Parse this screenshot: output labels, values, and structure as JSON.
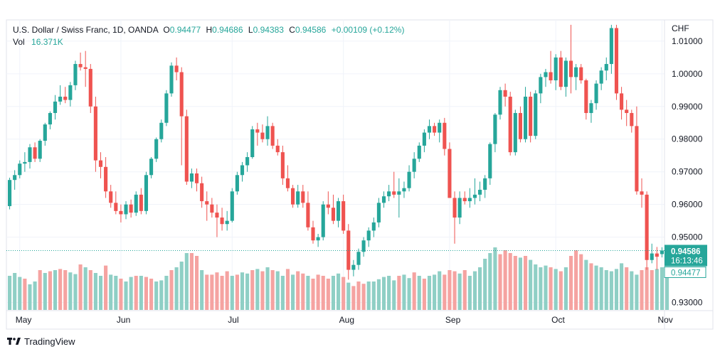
{
  "legend": {
    "symbol": "U.S. Dollar / Swiss Franc, 1D, OANDA",
    "o_label": "O",
    "o_value": "0.94477",
    "h_label": "H",
    "h_value": "0.94686",
    "l_label": "L",
    "l_value": "0.94383",
    "c_label": "C",
    "c_value": "0.94586",
    "change": "+0.00109 (+0.12%)",
    "vol_label": "Vol",
    "vol_value": "16.371K"
  },
  "currency": "CHF",
  "last_price_label": "0.94586",
  "countdown": "16:13:46",
  "open_price_label": "0.94477",
  "brand": "TradingView",
  "colors": {
    "up": "#26a69a",
    "down": "#ef5350",
    "vol_up": "#8fcfc5",
    "vol_down": "#f5a3a1",
    "grid": "#f0f3fa"
  },
  "chart_data": {
    "type": "candlestick",
    "symbol": "USDCHF",
    "interval": "1D",
    "x_tick_labels": [
      "May",
      "Jun",
      "Jul",
      "Aug",
      "Sep",
      "Oct",
      "Nov"
    ],
    "y_tick_labels": [
      "1.01000",
      "1.00000",
      "0.99000",
      "0.98000",
      "0.97000",
      "0.96000",
      "0.95000",
      "0.93000"
    ],
    "ylim": [
      0.9275,
      1.0165
    ],
    "grid": true,
    "ohlc": [
      [
        0.9595,
        0.9682,
        0.9585,
        0.9675
      ],
      [
        0.9675,
        0.9705,
        0.9645,
        0.969
      ],
      [
        0.969,
        0.9735,
        0.968,
        0.9725
      ],
      [
        0.9725,
        0.976,
        0.97,
        0.973
      ],
      [
        0.973,
        0.9785,
        0.971,
        0.9775
      ],
      [
        0.9775,
        0.979,
        0.973,
        0.974
      ],
      [
        0.974,
        0.98,
        0.973,
        0.9795
      ],
      [
        0.9795,
        0.985,
        0.978,
        0.9845
      ],
      [
        0.9845,
        0.9885,
        0.983,
        0.988
      ],
      [
        0.988,
        0.9935,
        0.986,
        0.9915
      ],
      [
        0.9915,
        0.9965,
        0.9905,
        0.993
      ],
      [
        0.993,
        0.996,
        0.991,
        0.992
      ],
      [
        0.992,
        0.9975,
        0.99,
        0.9965
      ],
      [
        0.9965,
        1.004,
        0.995,
        1.003
      ],
      [
        1.003,
        1.0065,
        1.001,
        1.002
      ],
      [
        1.002,
        1.007,
        0.996,
        1.0015
      ],
      [
        1.0015,
        1.003,
        0.988,
        0.99
      ],
      [
        0.99,
        0.993,
        0.97,
        0.9735
      ],
      [
        0.9735,
        0.976,
        0.968,
        0.9715
      ],
      [
        0.9715,
        0.9745,
        0.962,
        0.964
      ],
      [
        0.964,
        0.966,
        0.959,
        0.9605
      ],
      [
        0.9605,
        0.964,
        0.957,
        0.958
      ],
      [
        0.958,
        0.96,
        0.9545,
        0.957
      ],
      [
        0.957,
        0.961,
        0.9555,
        0.96
      ],
      [
        0.96,
        0.9615,
        0.956,
        0.9575
      ],
      [
        0.9575,
        0.964,
        0.9565,
        0.963
      ],
      [
        0.963,
        0.965,
        0.957,
        0.958
      ],
      [
        0.958,
        0.97,
        0.957,
        0.969
      ],
      [
        0.969,
        0.9745,
        0.968,
        0.974
      ],
      [
        0.974,
        0.9805,
        0.973,
        0.98
      ],
      [
        0.98,
        0.986,
        0.979,
        0.985
      ],
      [
        0.985,
        0.995,
        0.984,
        0.994
      ],
      [
        0.994,
        1.0035,
        0.993,
        1.0025
      ],
      [
        1.0025,
        1.005,
        0.998,
        1.0005
      ],
      [
        1.0005,
        1.002,
        0.972,
        0.987
      ],
      [
        0.987,
        0.989,
        0.966,
        0.967
      ],
      [
        0.967,
        0.971,
        0.965,
        0.9695
      ],
      [
        0.9695,
        0.971,
        0.964,
        0.9665
      ],
      [
        0.9665,
        0.9685,
        0.959,
        0.961
      ],
      [
        0.961,
        0.964,
        0.955,
        0.96
      ],
      [
        0.96,
        0.962,
        0.956,
        0.9575
      ],
      [
        0.9575,
        0.96,
        0.95,
        0.956
      ],
      [
        0.956,
        0.959,
        0.952,
        0.954
      ],
      [
        0.954,
        0.958,
        0.952,
        0.955
      ],
      [
        0.955,
        0.965,
        0.9545,
        0.964
      ],
      [
        0.964,
        0.97,
        0.963,
        0.969
      ],
      [
        0.969,
        0.973,
        0.967,
        0.972
      ],
      [
        0.972,
        0.976,
        0.97,
        0.9745
      ],
      [
        0.9745,
        0.984,
        0.974,
        0.983
      ],
      [
        0.983,
        0.985,
        0.978,
        0.982
      ],
      [
        0.982,
        0.9845,
        0.979,
        0.98
      ],
      [
        0.98,
        0.987,
        0.978,
        0.984
      ],
      [
        0.984,
        0.985,
        0.977,
        0.978
      ],
      [
        0.978,
        0.98,
        0.975,
        0.976
      ],
      [
        0.976,
        0.978,
        0.966,
        0.968
      ],
      [
        0.968,
        0.972,
        0.964,
        0.965
      ],
      [
        0.965,
        0.966,
        0.959,
        0.96
      ],
      [
        0.96,
        0.966,
        0.959,
        0.964
      ],
      [
        0.964,
        0.966,
        0.959,
        0.9605
      ],
      [
        0.9605,
        0.964,
        0.952,
        0.953
      ],
      [
        0.953,
        0.955,
        0.948,
        0.949
      ],
      [
        0.949,
        0.951,
        0.947,
        0.95
      ],
      [
        0.95,
        0.961,
        0.949,
        0.96
      ],
      [
        0.96,
        0.964,
        0.957,
        0.959
      ],
      [
        0.959,
        0.963,
        0.954,
        0.955
      ],
      [
        0.955,
        0.962,
        0.953,
        0.961
      ],
      [
        0.961,
        0.963,
        0.951,
        0.952
      ],
      [
        0.952,
        0.954,
        0.937,
        0.94
      ],
      [
        0.94,
        0.943,
        0.938,
        0.9415
      ],
      [
        0.9415,
        0.9465,
        0.94,
        0.9455
      ],
      [
        0.9455,
        0.95,
        0.944,
        0.949
      ],
      [
        0.949,
        0.953,
        0.947,
        0.952
      ],
      [
        0.952,
        0.956,
        0.95,
        0.9545
      ],
      [
        0.9545,
        0.962,
        0.953,
        0.9605
      ],
      [
        0.9605,
        0.964,
        0.959,
        0.9625
      ],
      [
        0.9625,
        0.966,
        0.961,
        0.964
      ],
      [
        0.964,
        0.97,
        0.962,
        0.963
      ],
      [
        0.963,
        0.968,
        0.956,
        0.964
      ],
      [
        0.964,
        0.967,
        0.962,
        0.965
      ],
      [
        0.965,
        0.972,
        0.964,
        0.97
      ],
      [
        0.97,
        0.976,
        0.968,
        0.974
      ],
      [
        0.974,
        0.979,
        0.973,
        0.978
      ],
      [
        0.978,
        0.983,
        0.976,
        0.982
      ],
      [
        0.982,
        0.986,
        0.98,
        0.984
      ],
      [
        0.984,
        0.985,
        0.981,
        0.982
      ],
      [
        0.982,
        0.986,
        0.979,
        0.985
      ],
      [
        0.985,
        0.9865,
        0.975,
        0.977
      ],
      [
        0.977,
        0.979,
        0.962,
        0.962
      ],
      [
        0.962,
        0.964,
        0.948,
        0.956
      ],
      [
        0.956,
        0.964,
        0.954,
        0.962
      ],
      [
        0.962,
        0.964,
        0.96,
        0.961
      ],
      [
        0.961,
        0.965,
        0.959,
        0.962
      ],
      [
        0.962,
        0.968,
        0.96,
        0.963
      ],
      [
        0.963,
        0.967,
        0.961,
        0.9645
      ],
      [
        0.9645,
        0.969,
        0.962,
        0.968
      ],
      [
        0.968,
        0.979,
        0.966,
        0.9785
      ],
      [
        0.9785,
        0.988,
        0.976,
        0.9875
      ],
      [
        0.9875,
        0.996,
        0.986,
        0.995
      ],
      [
        0.995,
        0.997,
        0.99,
        0.993
      ],
      [
        0.993,
        0.9945,
        0.975,
        0.976
      ],
      [
        0.976,
        0.989,
        0.975,
        0.988
      ],
      [
        0.988,
        0.99,
        0.979,
        0.98
      ],
      [
        0.98,
        0.996,
        0.979,
        0.993
      ],
      [
        0.993,
        0.9945,
        0.979,
        0.981
      ],
      [
        0.981,
        0.995,
        0.98,
        0.994
      ],
      [
        0.994,
        1.0,
        0.991,
        0.999
      ],
      [
        0.999,
        1.0015,
        0.996,
        1.0005
      ],
      [
        1.0005,
        1.007,
        0.997,
        0.998
      ],
      [
        0.998,
        1.006,
        0.995,
        1.005
      ],
      [
        1.005,
        1.007,
        0.995,
        0.996
      ],
      [
        0.996,
        1.005,
        0.993,
        1.004
      ],
      [
        1.004,
        1.015,
        0.994,
        0.999
      ],
      [
        0.999,
        1.003,
        0.995,
        1.002
      ],
      [
        1.002,
        1.003,
        0.997,
        0.998
      ],
      [
        0.998,
        0.9985,
        0.986,
        0.988
      ],
      [
        0.988,
        0.992,
        0.985,
        0.991
      ],
      [
        0.991,
        0.998,
        0.989,
        0.997
      ],
      [
        0.997,
        1.002,
        0.995,
        1.001
      ],
      [
        1.001,
        1.005,
        0.998,
        1.003
      ],
      [
        1.003,
        1.015,
        1.0,
        1.014
      ],
      [
        1.014,
        1.015,
        0.992,
        0.994
      ],
      [
        0.994,
        0.996,
        0.986,
        0.989
      ],
      [
        0.989,
        0.992,
        0.984,
        0.988
      ],
      [
        0.988,
        0.989,
        0.982,
        0.984
      ],
      [
        0.984,
        0.99,
        0.963,
        0.964
      ],
      [
        0.964,
        0.968,
        0.959,
        0.963
      ],
      [
        0.963,
        0.964,
        0.94,
        0.943
      ],
      [
        0.943,
        0.948,
        0.942,
        0.945
      ],
      [
        0.945,
        0.947,
        0.94,
        0.944
      ],
      [
        0.9448,
        0.9469,
        0.9438,
        0.9459
      ]
    ],
    "volume": [
      {
        "value": 0.6,
        "up": true
      },
      {
        "value": 0.65,
        "up": true
      },
      {
        "value": 0.58,
        "up": true
      },
      {
        "value": 0.55,
        "up": false
      },
      {
        "value": 0.45,
        "up": true
      },
      {
        "value": 0.5,
        "up": true
      },
      {
        "value": 0.7,
        "up": false
      },
      {
        "value": 0.65,
        "up": true
      },
      {
        "value": 0.68,
        "up": false
      },
      {
        "value": 0.7,
        "up": true
      },
      {
        "value": 0.72,
        "up": false
      },
      {
        "value": 0.7,
        "up": false
      },
      {
        "value": 0.66,
        "up": true
      },
      {
        "value": 0.63,
        "up": true
      },
      {
        "value": 0.8,
        "up": false
      },
      {
        "value": 0.75,
        "up": true
      },
      {
        "value": 0.7,
        "up": false
      },
      {
        "value": 0.65,
        "up": true
      },
      {
        "value": 0.6,
        "up": true
      },
      {
        "value": 0.78,
        "up": false
      },
      {
        "value": 0.62,
        "up": true
      },
      {
        "value": 0.6,
        "up": true
      },
      {
        "value": 0.55,
        "up": false
      },
      {
        "value": 0.5,
        "up": true
      },
      {
        "value": 0.58,
        "up": true
      },
      {
        "value": 0.6,
        "up": false
      },
      {
        "value": 0.6,
        "up": true
      },
      {
        "value": 0.58,
        "up": false
      },
      {
        "value": 0.55,
        "up": false
      },
      {
        "value": 0.5,
        "up": true
      },
      {
        "value": 0.52,
        "up": true
      },
      {
        "value": 0.6,
        "up": true
      },
      {
        "value": 0.7,
        "up": false
      },
      {
        "value": 0.75,
        "up": true
      },
      {
        "value": 0.85,
        "up": true
      },
      {
        "value": 1.0,
        "up": true
      },
      {
        "value": 1.0,
        "up": false
      },
      {
        "value": 0.95,
        "up": false
      },
      {
        "value": 0.7,
        "up": true
      },
      {
        "value": 0.62,
        "up": false
      },
      {
        "value": 0.62,
        "up": false
      },
      {
        "value": 0.66,
        "up": false
      },
      {
        "value": 0.6,
        "up": false
      },
      {
        "value": 0.68,
        "up": false
      },
      {
        "value": 0.6,
        "up": true
      },
      {
        "value": 0.62,
        "up": false
      },
      {
        "value": 0.66,
        "up": true
      },
      {
        "value": 0.64,
        "up": true
      },
      {
        "value": 0.7,
        "up": false
      },
      {
        "value": 0.72,
        "up": true
      },
      {
        "value": 0.68,
        "up": false
      },
      {
        "value": 0.75,
        "up": true
      },
      {
        "value": 0.7,
        "up": false
      },
      {
        "value": 0.68,
        "up": true
      },
      {
        "value": 0.6,
        "up": true
      },
      {
        "value": 0.72,
        "up": false
      },
      {
        "value": 0.62,
        "up": true
      },
      {
        "value": 0.68,
        "up": false
      },
      {
        "value": 0.64,
        "up": false
      },
      {
        "value": 0.6,
        "up": true
      },
      {
        "value": 0.55,
        "up": false
      },
      {
        "value": 0.62,
        "up": false
      },
      {
        "value": 0.6,
        "up": false
      },
      {
        "value": 0.55,
        "up": false
      },
      {
        "value": 0.6,
        "up": true
      },
      {
        "value": 0.64,
        "up": true
      },
      {
        "value": 0.58,
        "up": false
      },
      {
        "value": 0.48,
        "up": true
      },
      {
        "value": 0.42,
        "up": false
      },
      {
        "value": 0.5,
        "up": false
      },
      {
        "value": 0.46,
        "up": false
      },
      {
        "value": 0.5,
        "up": true
      },
      {
        "value": 0.5,
        "up": true
      },
      {
        "value": 0.54,
        "up": true
      },
      {
        "value": 0.58,
        "up": true
      },
      {
        "value": 0.6,
        "up": true
      },
      {
        "value": 0.52,
        "up": true
      },
      {
        "value": 0.6,
        "up": false
      },
      {
        "value": 0.62,
        "up": true
      },
      {
        "value": 0.56,
        "up": true
      },
      {
        "value": 0.66,
        "up": false
      },
      {
        "value": 0.6,
        "up": true
      },
      {
        "value": 0.55,
        "up": false
      },
      {
        "value": 0.6,
        "up": true
      },
      {
        "value": 0.62,
        "up": true
      },
      {
        "value": 0.68,
        "up": true
      },
      {
        "value": 0.62,
        "up": false
      },
      {
        "value": 0.7,
        "up": false
      },
      {
        "value": 0.68,
        "up": false
      },
      {
        "value": 0.64,
        "up": true
      },
      {
        "value": 0.7,
        "up": false
      },
      {
        "value": 0.6,
        "up": true
      },
      {
        "value": 0.68,
        "up": true
      },
      {
        "value": 0.75,
        "up": true
      },
      {
        "value": 0.9,
        "up": true
      },
      {
        "value": 1.0,
        "up": true
      },
      {
        "value": 1.1,
        "up": true
      },
      {
        "value": 0.98,
        "up": false
      },
      {
        "value": 1.05,
        "up": false
      },
      {
        "value": 1.0,
        "up": false
      },
      {
        "value": 0.95,
        "up": false
      },
      {
        "value": 0.92,
        "up": true
      },
      {
        "value": 0.95,
        "up": false
      },
      {
        "value": 0.88,
        "up": true
      },
      {
        "value": 0.8,
        "up": true
      },
      {
        "value": 0.75,
        "up": true
      },
      {
        "value": 0.78,
        "up": true
      },
      {
        "value": 0.75,
        "up": false
      },
      {
        "value": 0.72,
        "up": true
      },
      {
        "value": 0.68,
        "up": false
      },
      {
        "value": 0.75,
        "up": true
      },
      {
        "value": 0.95,
        "up": false
      },
      {
        "value": 1.05,
        "up": false
      },
      {
        "value": 0.98,
        "up": false
      },
      {
        "value": 0.88,
        "up": true
      },
      {
        "value": 0.82,
        "up": false
      },
      {
        "value": 0.78,
        "up": true
      },
      {
        "value": 0.75,
        "up": true
      },
      {
        "value": 0.7,
        "up": true
      },
      {
        "value": 0.68,
        "up": true
      },
      {
        "value": 0.72,
        "up": true
      },
      {
        "value": 0.82,
        "up": true
      },
      {
        "value": 0.75,
        "up": false
      },
      {
        "value": 0.68,
        "up": true
      },
      {
        "value": 0.62,
        "up": true
      },
      {
        "value": 0.7,
        "up": false
      },
      {
        "value": 0.75,
        "up": false
      },
      {
        "value": 0.7,
        "up": false
      },
      {
        "value": 0.72,
        "up": true
      },
      {
        "value": 0.75,
        "up": true
      },
      {
        "value": 0.6,
        "up": true
      }
    ]
  }
}
